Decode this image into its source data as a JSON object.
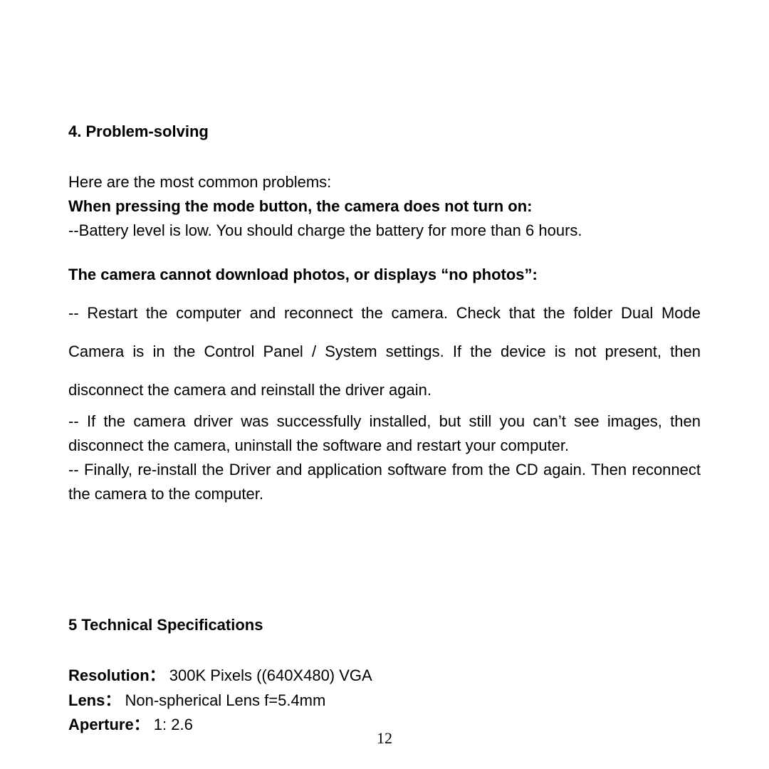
{
  "section4": {
    "heading": "4. Problem-solving",
    "intro": "Here are the most common problems:",
    "problem1_title": "When pressing the mode button, the camera does not turn on:",
    "problem1_line1": "--Battery level is low. You should charge the battery for more than 6 hours.",
    "problem2_title": "The camera cannot download photos, or displays “no photos”:",
    "problem2_line1": "-- Restart the computer and reconnect the camera. Check that the folder Dual Mode Camera is in the Control Panel / System settings. If the device is not present, then disconnect the camera and reinstall the driver again.",
    "problem2_line2": "-- If the camera driver was successfully installed, but still you can’t see images, then disconnect the camera, uninstall the software and restart your computer.",
    "problem2_line3": "-- Finally, re-install the Driver and application software from the CD again. Then reconnect the camera to the computer."
  },
  "section5": {
    "heading": "5  Technical  Specifications",
    "specs": {
      "resolution_label": "Resolution：",
      "resolution_value": " 300K Pixels ((640X480) VGA",
      "lens_label": "Lens：",
      "lens_value": " Non-spherical Lens f=5.4mm",
      "aperture_label": "Aperture：",
      "aperture_value": " 1: 2.6"
    }
  },
  "page_number": "12"
}
